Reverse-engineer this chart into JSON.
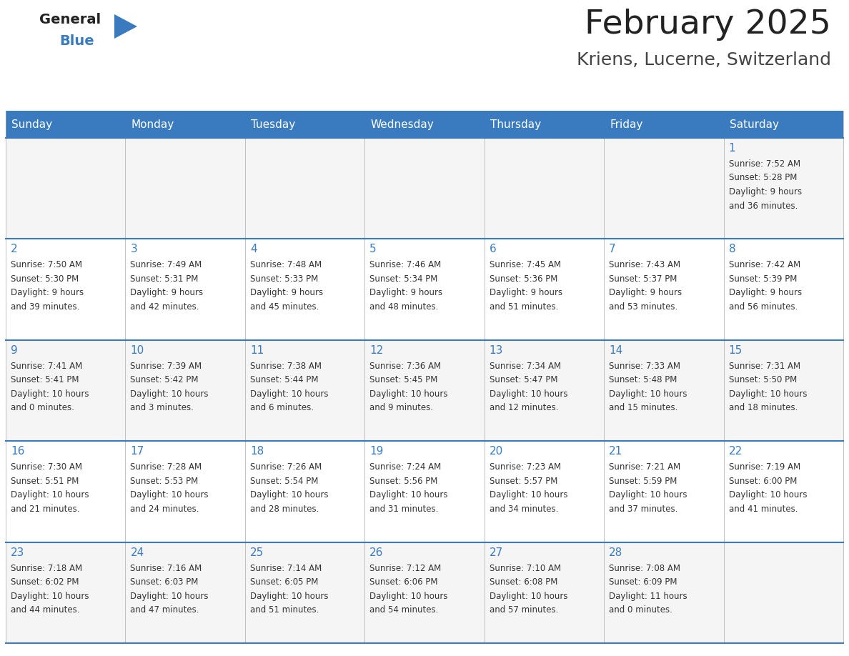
{
  "title": "February 2025",
  "subtitle": "Kriens, Lucerne, Switzerland",
  "header_bg": "#3a7bbf",
  "header_text_color": "#ffffff",
  "cell_bg_light": "#f5f5f5",
  "cell_bg_white": "#ffffff",
  "border_color": "#3a7bbf",
  "grid_color": "#aaaaaa",
  "title_color": "#222222",
  "subtitle_color": "#444444",
  "day_number_color": "#3a7bbf",
  "cell_text_color": "#333333",
  "logo_general_color": "#222222",
  "logo_blue_color": "#3a7bbf",
  "day_names": [
    "Sunday",
    "Monday",
    "Tuesday",
    "Wednesday",
    "Thursday",
    "Friday",
    "Saturday"
  ],
  "weeks": [
    [
      {
        "day": 0,
        "info": ""
      },
      {
        "day": 0,
        "info": ""
      },
      {
        "day": 0,
        "info": ""
      },
      {
        "day": 0,
        "info": ""
      },
      {
        "day": 0,
        "info": ""
      },
      {
        "day": 0,
        "info": ""
      },
      {
        "day": 1,
        "info": "Sunrise: 7:52 AM\nSunset: 5:28 PM\nDaylight: 9 hours\nand 36 minutes."
      }
    ],
    [
      {
        "day": 2,
        "info": "Sunrise: 7:50 AM\nSunset: 5:30 PM\nDaylight: 9 hours\nand 39 minutes."
      },
      {
        "day": 3,
        "info": "Sunrise: 7:49 AM\nSunset: 5:31 PM\nDaylight: 9 hours\nand 42 minutes."
      },
      {
        "day": 4,
        "info": "Sunrise: 7:48 AM\nSunset: 5:33 PM\nDaylight: 9 hours\nand 45 minutes."
      },
      {
        "day": 5,
        "info": "Sunrise: 7:46 AM\nSunset: 5:34 PM\nDaylight: 9 hours\nand 48 minutes."
      },
      {
        "day": 6,
        "info": "Sunrise: 7:45 AM\nSunset: 5:36 PM\nDaylight: 9 hours\nand 51 minutes."
      },
      {
        "day": 7,
        "info": "Sunrise: 7:43 AM\nSunset: 5:37 PM\nDaylight: 9 hours\nand 53 minutes."
      },
      {
        "day": 8,
        "info": "Sunrise: 7:42 AM\nSunset: 5:39 PM\nDaylight: 9 hours\nand 56 minutes."
      }
    ],
    [
      {
        "day": 9,
        "info": "Sunrise: 7:41 AM\nSunset: 5:41 PM\nDaylight: 10 hours\nand 0 minutes."
      },
      {
        "day": 10,
        "info": "Sunrise: 7:39 AM\nSunset: 5:42 PM\nDaylight: 10 hours\nand 3 minutes."
      },
      {
        "day": 11,
        "info": "Sunrise: 7:38 AM\nSunset: 5:44 PM\nDaylight: 10 hours\nand 6 minutes."
      },
      {
        "day": 12,
        "info": "Sunrise: 7:36 AM\nSunset: 5:45 PM\nDaylight: 10 hours\nand 9 minutes."
      },
      {
        "day": 13,
        "info": "Sunrise: 7:34 AM\nSunset: 5:47 PM\nDaylight: 10 hours\nand 12 minutes."
      },
      {
        "day": 14,
        "info": "Sunrise: 7:33 AM\nSunset: 5:48 PM\nDaylight: 10 hours\nand 15 minutes."
      },
      {
        "day": 15,
        "info": "Sunrise: 7:31 AM\nSunset: 5:50 PM\nDaylight: 10 hours\nand 18 minutes."
      }
    ],
    [
      {
        "day": 16,
        "info": "Sunrise: 7:30 AM\nSunset: 5:51 PM\nDaylight: 10 hours\nand 21 minutes."
      },
      {
        "day": 17,
        "info": "Sunrise: 7:28 AM\nSunset: 5:53 PM\nDaylight: 10 hours\nand 24 minutes."
      },
      {
        "day": 18,
        "info": "Sunrise: 7:26 AM\nSunset: 5:54 PM\nDaylight: 10 hours\nand 28 minutes."
      },
      {
        "day": 19,
        "info": "Sunrise: 7:24 AM\nSunset: 5:56 PM\nDaylight: 10 hours\nand 31 minutes."
      },
      {
        "day": 20,
        "info": "Sunrise: 7:23 AM\nSunset: 5:57 PM\nDaylight: 10 hours\nand 34 minutes."
      },
      {
        "day": 21,
        "info": "Sunrise: 7:21 AM\nSunset: 5:59 PM\nDaylight: 10 hours\nand 37 minutes."
      },
      {
        "day": 22,
        "info": "Sunrise: 7:19 AM\nSunset: 6:00 PM\nDaylight: 10 hours\nand 41 minutes."
      }
    ],
    [
      {
        "day": 23,
        "info": "Sunrise: 7:18 AM\nSunset: 6:02 PM\nDaylight: 10 hours\nand 44 minutes."
      },
      {
        "day": 24,
        "info": "Sunrise: 7:16 AM\nSunset: 6:03 PM\nDaylight: 10 hours\nand 47 minutes."
      },
      {
        "day": 25,
        "info": "Sunrise: 7:14 AM\nSunset: 6:05 PM\nDaylight: 10 hours\nand 51 minutes."
      },
      {
        "day": 26,
        "info": "Sunrise: 7:12 AM\nSunset: 6:06 PM\nDaylight: 10 hours\nand 54 minutes."
      },
      {
        "day": 27,
        "info": "Sunrise: 7:10 AM\nSunset: 6:08 PM\nDaylight: 10 hours\nand 57 minutes."
      },
      {
        "day": 28,
        "info": "Sunrise: 7:08 AM\nSunset: 6:09 PM\nDaylight: 11 hours\nand 0 minutes."
      },
      {
        "day": 0,
        "info": ""
      }
    ]
  ],
  "fig_width": 11.88,
  "fig_height": 9.18,
  "dpi": 100
}
